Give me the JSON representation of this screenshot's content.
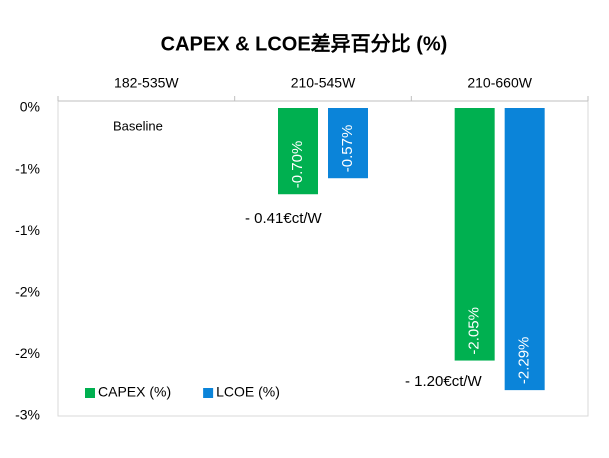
{
  "chart_data": {
    "type": "bar",
    "title": "CAPEX & LCOE差异百分比 (%)",
    "categories": [
      "182-535W",
      "210-545W",
      "210-660W"
    ],
    "series": [
      {
        "name": "CAPEX (%)",
        "color": "#00b050",
        "values": [
          null,
          -0.7,
          -2.05
        ],
        "value_labels": [
          null,
          "-0.70%",
          "-2.05%"
        ]
      },
      {
        "name": "LCOE (%)",
        "color": "#0b84d9",
        "values": [
          null,
          -0.57,
          -2.29
        ],
        "value_labels": [
          null,
          "-0.57%",
          "-2.29%"
        ]
      }
    ],
    "ylim": [
      -2.5,
      0
    ],
    "yticks": [
      {
        "value": 0,
        "label": "0%"
      },
      {
        "value": -0.5,
        "label": "-1%"
      },
      {
        "value": -1,
        "label": "-1%"
      },
      {
        "value": -1.5,
        "label": "-2%"
      },
      {
        "value": -2,
        "label": "-2%"
      },
      {
        "value": -2.5,
        "label": "-3%"
      }
    ],
    "annotations": [
      "Baseline",
      "- 0.41€ct/W",
      "- 1.20€ct/W"
    ],
    "legend": "lower left",
    "grid": false
  }
}
